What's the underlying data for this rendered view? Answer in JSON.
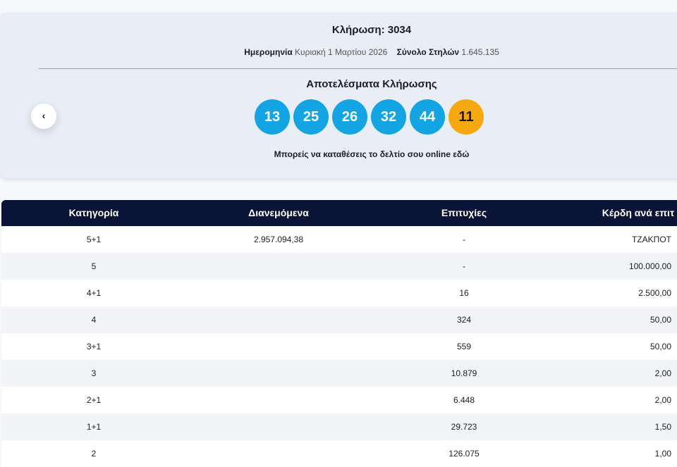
{
  "header": {
    "title": "Κλήρωση: 3034",
    "date_label": "Ημερομηνία",
    "date": "Κυριακή 1 Μαρτίου 2026",
    "columns_label": "Σύνολο Στηλών",
    "columns": "1.645.135"
  },
  "results": {
    "title": "Αποτελέσματα Κλήρωσης",
    "numbers": [
      "13",
      "25",
      "26",
      "32",
      "44"
    ],
    "bonus": "11",
    "link": "Μπορείς να καταθέσεις το δελτίο σου online εδώ"
  },
  "table": {
    "headers": [
      "Κατηγορία",
      "Διανεμόμενα",
      "Επιτυχίες",
      "Κέρδη ανά επιτ"
    ],
    "rows": [
      [
        "5+1",
        "2.957.094,38",
        "-",
        "ΤΖΑΚΠΟΤ"
      ],
      [
        "5",
        null,
        "-",
        "100.000,00"
      ],
      [
        "4+1",
        null,
        "16",
        "2.500,00"
      ],
      [
        "4",
        null,
        "324",
        "50,00"
      ],
      [
        "3+1",
        null,
        "559",
        "50,00"
      ],
      [
        "3",
        null,
        "10.879",
        "2,00"
      ],
      [
        "2+1",
        null,
        "6.448",
        "2,00"
      ],
      [
        "1+1",
        null,
        "29.723",
        "1,50"
      ],
      [
        "2",
        null,
        "126.075",
        "1,00"
      ]
    ]
  }
}
